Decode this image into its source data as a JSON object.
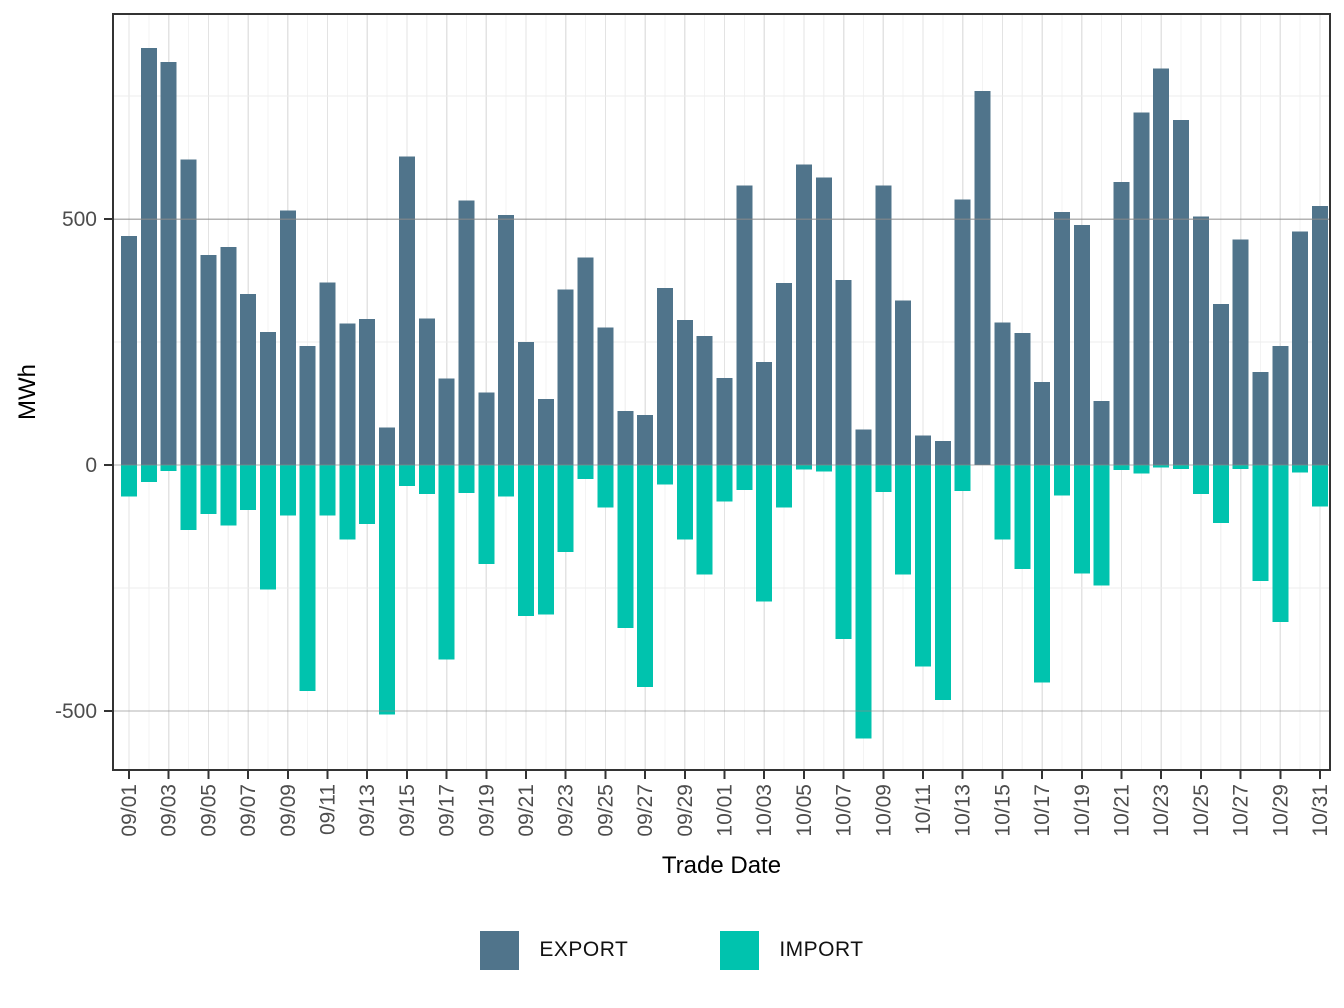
{
  "chart_data": {
    "type": "bar",
    "bar_style": "diverging-stacked",
    "title": "",
    "xlabel": "Trade Date",
    "ylabel": "MWh",
    "x": [
      "09/01",
      "09/02",
      "09/03",
      "09/04",
      "09/05",
      "09/06",
      "09/07",
      "09/08",
      "09/09",
      "09/10",
      "09/11",
      "09/12",
      "09/13",
      "09/14",
      "09/15",
      "09/16",
      "09/17",
      "09/18",
      "09/19",
      "09/20",
      "09/21",
      "09/22",
      "09/23",
      "09/24",
      "09/25",
      "09/26",
      "09/27",
      "09/28",
      "09/29",
      "09/30",
      "10/01",
      "10/02",
      "10/03",
      "10/04",
      "10/05",
      "10/06",
      "10/07",
      "10/08",
      "10/09",
      "10/10",
      "10/11",
      "10/12",
      "10/13",
      "10/14",
      "10/15",
      "10/16",
      "10/17",
      "10/18",
      "10/19",
      "10/20",
      "10/21",
      "10/22",
      "10/23",
      "10/24",
      "10/25",
      "10/26",
      "10/27",
      "10/28",
      "10/29",
      "10/30",
      "10/31"
    ],
    "series": [
      {
        "name": "EXPORT",
        "color": "#50748B",
        "values": [
          466,
          848,
          819,
          621,
          427,
          443,
          348,
          270,
          518,
          242,
          371,
          288,
          297,
          76,
          627,
          298,
          176,
          538,
          147,
          508,
          250,
          134,
          357,
          422,
          280,
          110,
          102,
          360,
          295,
          262,
          177,
          568,
          209,
          370,
          611,
          585,
          376,
          72,
          568,
          335,
          60,
          49,
          540,
          760,
          290,
          268,
          169,
          514,
          488,
          130,
          575,
          717,
          806,
          701,
          505,
          327,
          459,
          189,
          242,
          475,
          527
        ]
      },
      {
        "name": "IMPORT",
        "color": "#00C3AE",
        "values": [
          -64,
          -34,
          -12,
          -132,
          -100,
          -123,
          -91,
          -253,
          -103,
          -459,
          -103,
          -151,
          -120,
          -507,
          -43,
          -59,
          -395,
          -57,
          -201,
          -64,
          -307,
          -304,
          -177,
          -28,
          -86,
          -331,
          -451,
          -40,
          -151,
          -223,
          -74,
          -51,
          -277,
          -86,
          -9,
          -13,
          -354,
          -556,
          -55,
          -223,
          -410,
          -478,
          -53,
          0,
          -151,
          -211,
          -442,
          -62,
          -221,
          -245,
          -10,
          -17,
          -5,
          -8,
          -59,
          -118,
          -8,
          -236,
          -319,
          -15,
          -84
        ]
      }
    ],
    "ylim": [
      -620,
      917
    ],
    "yticks": [
      -500,
      0,
      500
    ],
    "yticks_minor": [
      -250,
      250,
      750
    ],
    "x_tick_every": 2,
    "grid": "on",
    "legend_position": "bottom"
  }
}
